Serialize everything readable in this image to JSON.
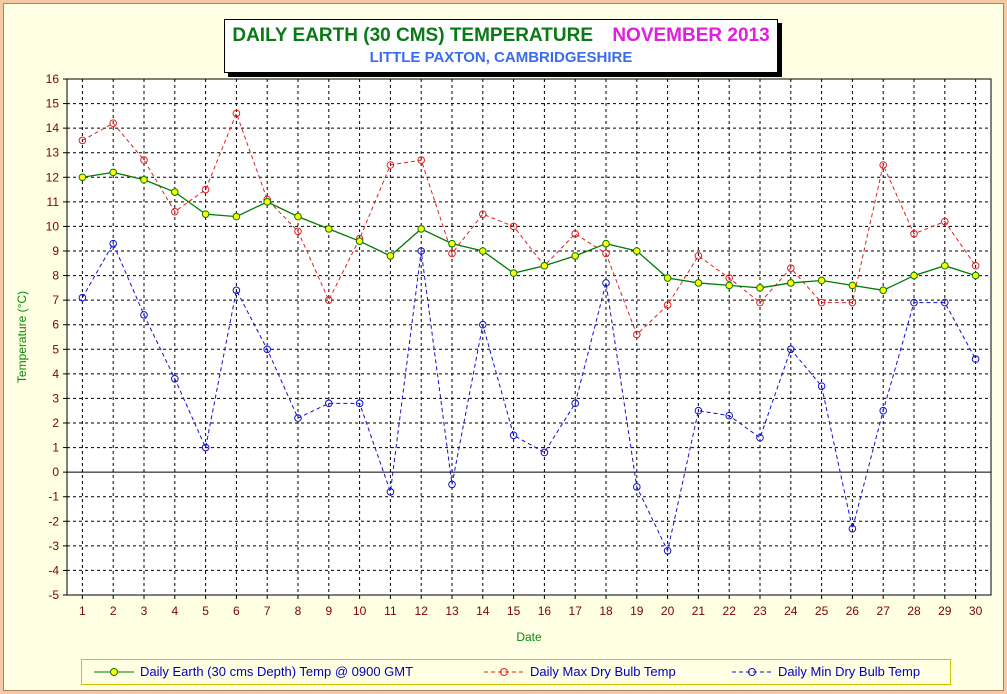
{
  "title": {
    "main": "DAILY EARTH (30 CMS) TEMPERATURE",
    "month": "NOVEMBER  2013",
    "location": "LITTLE PAXTON, CAMBRIDGESHIRE"
  },
  "colors": {
    "earth": "#007a00",
    "earth_marker": "#ffff00",
    "max": "#e02020",
    "min": "#1010d0",
    "title_green": "#0a7a16",
    "title_magenta": "#e01ee0",
    "subtitle_blue": "#3a6cf0",
    "axis_label_green": "#0a8a0a",
    "tick_red": "#800000"
  },
  "chart_data": {
    "type": "line",
    "title": "DAILY EARTH (30 CMS) TEMPERATURE  NOVEMBER  2013",
    "subtitle": "LITTLE PAXTON, CAMBRIDGESHIRE",
    "xlabel": "Date",
    "ylabel": "Temperature (°C)",
    "ylim": [
      -5,
      16
    ],
    "y_step": 1,
    "grid": true,
    "legend_position": "bottom",
    "categories": [
      "1",
      "2",
      "3",
      "4",
      "5",
      "6",
      "7",
      "8",
      "9",
      "10",
      "11",
      "12",
      "13",
      "14",
      "15",
      "16",
      "17",
      "18",
      "19",
      "20",
      "21",
      "22",
      "23",
      "24",
      "25",
      "26",
      "27",
      "28",
      "29",
      "30"
    ],
    "series": [
      {
        "name": "Daily Earth (30 cms Depth) Temp @ 0900 GMT",
        "style": "solid",
        "values": [
          12.0,
          12.2,
          11.9,
          11.4,
          10.5,
          10.4,
          11.0,
          10.4,
          9.9,
          9.4,
          8.8,
          9.9,
          9.3,
          9.0,
          8.1,
          8.4,
          8.8,
          9.3,
          9.0,
          7.9,
          7.7,
          7.6,
          7.5,
          7.7,
          7.8,
          7.6,
          7.4,
          8.0,
          8.4,
          8.0
        ]
      },
      {
        "name": "Daily Max Dry Bulb Temp",
        "style": "dashed",
        "values": [
          13.5,
          14.2,
          12.7,
          10.6,
          11.5,
          14.6,
          11.1,
          9.8,
          7.0,
          9.5,
          12.5,
          12.7,
          8.9,
          10.5,
          10.0,
          8.4,
          9.7,
          8.9,
          5.6,
          6.8,
          8.8,
          7.9,
          6.9,
          8.3,
          6.9,
          6.9,
          12.5,
          9.7,
          10.2,
          8.4
        ]
      },
      {
        "name": "Daily Min Dry Bulb Temp",
        "style": "dashed",
        "values": [
          7.1,
          9.3,
          6.4,
          3.8,
          1.0,
          7.4,
          5.0,
          2.2,
          2.8,
          2.8,
          -0.8,
          9.0,
          -0.5,
          6.0,
          1.5,
          0.8,
          2.8,
          7.7,
          -0.6,
          -3.2,
          2.5,
          2.3,
          1.4,
          5.0,
          3.5,
          -2.3,
          2.5,
          6.9,
          6.9,
          4.6
        ]
      }
    ]
  }
}
